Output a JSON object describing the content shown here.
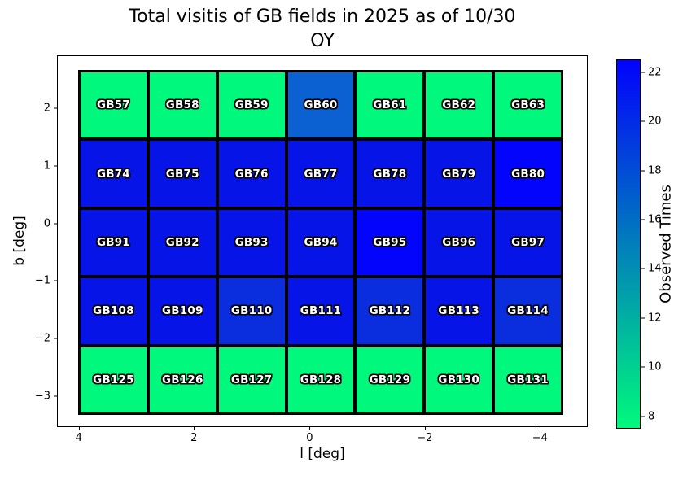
{
  "figure": {
    "title_line1": "Total visitis of GB fields in 2025 as of 10/30",
    "title_line2": "OY"
  },
  "chart_data": {
    "type": "heatmap",
    "title": "Total visitis of GB fields in 2025 as of 10/30 OY",
    "xlabel": "l [deg]",
    "ylabel": "b [deg]",
    "x_range": [
      4.4,
      -4.8
    ],
    "y_range": [
      2.9,
      -3.5
    ],
    "grid_on": false,
    "x_ticks": [
      {
        "label": "4",
        "pct": 4.1
      },
      {
        "label": "2",
        "pct": 25.8
      },
      {
        "label": "0",
        "pct": 47.6
      },
      {
        "label": "−2",
        "pct": 69.3
      },
      {
        "label": "−4",
        "pct": 91.0
      }
    ],
    "y_ticks": [
      {
        "label": "2",
        "pct": 14.2
      },
      {
        "label": "1",
        "pct": 29.8
      },
      {
        "label": "0",
        "pct": 45.3
      },
      {
        "label": "−1",
        "pct": 60.7
      },
      {
        "label": "−2",
        "pct": 76.1
      },
      {
        "label": "−3",
        "pct": 91.7
      }
    ],
    "palette": {
      "8": "#00F97C",
      "17": "#0B61D1",
      "20": "#0A2DDD",
      "21": "#0714E7",
      "22": "#0304FB"
    },
    "rows": [
      {
        "cells": [
          {
            "label": "GB57",
            "value": 8
          },
          {
            "label": "GB58",
            "value": 8
          },
          {
            "label": "GB59",
            "value": 8
          },
          {
            "label": "GB60",
            "value": 17
          },
          {
            "label": "GB61",
            "value": 8
          },
          {
            "label": "GB62",
            "value": 8
          },
          {
            "label": "GB63",
            "value": 8
          }
        ]
      },
      {
        "cells": [
          {
            "label": "GB74",
            "value": 21
          },
          {
            "label": "GB75",
            "value": 21
          },
          {
            "label": "GB76",
            "value": 21
          },
          {
            "label": "GB77",
            "value": 21
          },
          {
            "label": "GB78",
            "value": 21
          },
          {
            "label": "GB79",
            "value": 21
          },
          {
            "label": "GB80",
            "value": 22
          }
        ]
      },
      {
        "cells": [
          {
            "label": "GB91",
            "value": 21
          },
          {
            "label": "GB92",
            "value": 21
          },
          {
            "label": "GB93",
            "value": 21
          },
          {
            "label": "GB94",
            "value": 21
          },
          {
            "label": "GB95",
            "value": 22
          },
          {
            "label": "GB96",
            "value": 21
          },
          {
            "label": "GB97",
            "value": 21
          }
        ]
      },
      {
        "cells": [
          {
            "label": "GB108",
            "value": 21
          },
          {
            "label": "GB109",
            "value": 21
          },
          {
            "label": "GB110",
            "value": 20
          },
          {
            "label": "GB111",
            "value": 21
          },
          {
            "label": "GB112",
            "value": 20
          },
          {
            "label": "GB113",
            "value": 21
          },
          {
            "label": "GB114",
            "value": 20
          }
        ]
      },
      {
        "cells": [
          {
            "label": "GB125",
            "value": 8
          },
          {
            "label": "GB126",
            "value": 8
          },
          {
            "label": "GB127",
            "value": 8
          },
          {
            "label": "GB128",
            "value": 8
          },
          {
            "label": "GB129",
            "value": 8
          },
          {
            "label": "GB130",
            "value": 8
          },
          {
            "label": "GB131",
            "value": 8
          }
        ]
      }
    ],
    "colorbar": {
      "label": "Observed Times",
      "range": [
        7.5,
        22.5
      ],
      "color_min": "#00F97C",
      "color_max": "#0202FD",
      "ticks": [
        {
          "label": "22",
          "pct": 3.5
        },
        {
          "label": "20",
          "pct": 16.8
        },
        {
          "label": "18",
          "pct": 30.1
        },
        {
          "label": "16",
          "pct": 43.4
        },
        {
          "label": "14",
          "pct": 56.7
        },
        {
          "label": "12",
          "pct": 70.0
        },
        {
          "label": "10",
          "pct": 83.3
        },
        {
          "label": "8",
          "pct": 96.6
        }
      ]
    }
  }
}
